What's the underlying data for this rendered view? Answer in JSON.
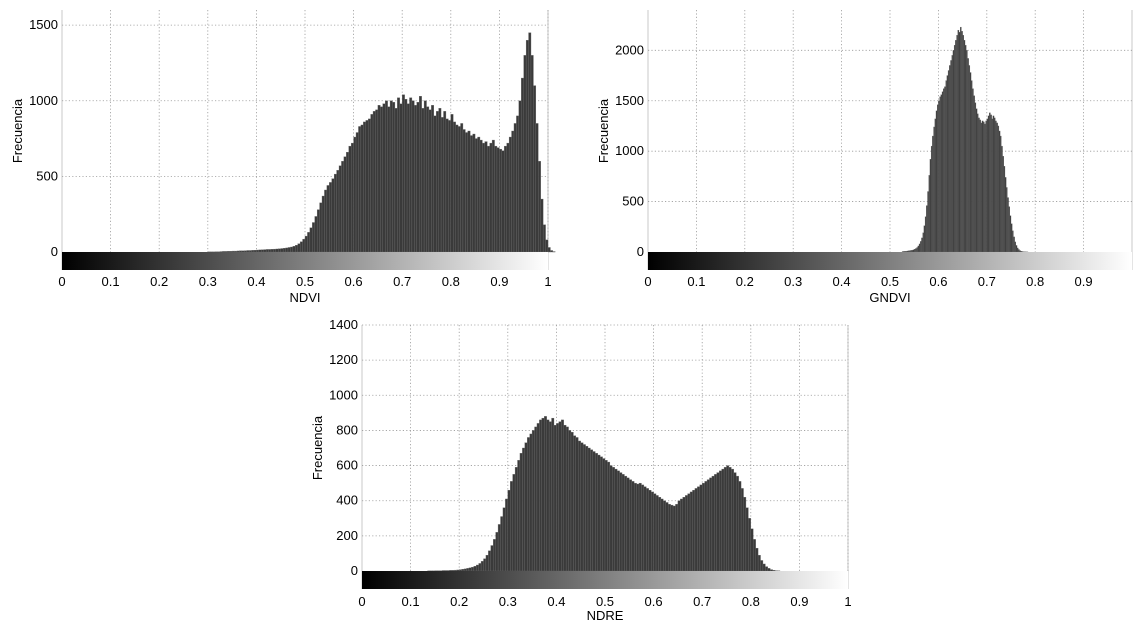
{
  "colors": {
    "bar": "#3a3a3a",
    "bar_edge": "#6a6a6a",
    "grid": "#9a9a9a",
    "colorbar_start": "#000000",
    "colorbar_end": "#ffffff"
  },
  "chart_data": [
    {
      "type": "bar",
      "xlabel": "NDVI",
      "ylabel": "Frecuencia",
      "xlim": [
        0,
        1
      ],
      "ylim": [
        0,
        1600
      ],
      "xticks": [
        "0",
        "0.1",
        "0.2",
        "0.3",
        "0.4",
        "0.5",
        "0.6",
        "0.7",
        "0.8",
        "0.9",
        "1"
      ],
      "yticks": [
        "0",
        "500",
        "1000",
        "1500"
      ],
      "grid": true,
      "colorbar": "grayscale black-to-white along x-axis",
      "bin_width": 0.005,
      "series": [
        {
          "x_range": [
            0.0,
            1.0
          ],
          "values": [
            0,
            0,
            0,
            0,
            0,
            0,
            0,
            0,
            0,
            0,
            0,
            0,
            0,
            0,
            0,
            0,
            0,
            0,
            0,
            0,
            0,
            0,
            0,
            0,
            0,
            0,
            0,
            0,
            0,
            0,
            0,
            0,
            0,
            0,
            0,
            0,
            0,
            0,
            0,
            0,
            0,
            0,
            0,
            0,
            0,
            0,
            0,
            0,
            0,
            0,
            0,
            0,
            0,
            0,
            0,
            0,
            0,
            0,
            0,
            0,
            1,
            1,
            1,
            2,
            2,
            3,
            4,
            4,
            5,
            5,
            6,
            6,
            7,
            8,
            8,
            9,
            10,
            10,
            11,
            12,
            13,
            14,
            15,
            16,
            17,
            17,
            18,
            19,
            20,
            21,
            23,
            25,
            27,
            30,
            33,
            38,
            45,
            55,
            68,
            85,
            105,
            130,
            160,
            195,
            235,
            280,
            325,
            370,
            410,
            440,
            460,
            485,
            515,
            540,
            570,
            600,
            630,
            660,
            700,
            720,
            760,
            790,
            830,
            840,
            860,
            870,
            880,
            910,
            930,
            940,
            970,
            960,
            980,
            1000,
            960,
            1000,
            990,
            950,
            1020,
            980,
            1040,
            1010,
            980,
            1020,
            1000,
            970,
            990,
            1030,
            950,
            1000,
            960,
            940,
            970,
            900,
            930,
            950,
            890,
            930,
            880,
            870,
            910,
            860,
            840,
            830,
            850,
            810,
            790,
            800,
            770,
            780,
            750,
            760,
            740,
            720,
            730,
            700,
            720,
            740,
            700,
            690,
            680,
            670,
            700,
            720,
            760,
            800,
            850,
            900,
            1000,
            1150,
            1300,
            1400,
            1450,
            1300,
            1100,
            850,
            600,
            350,
            180,
            80,
            30,
            10,
            3,
            0,
            0,
            0,
            0,
            0,
            0,
            0,
            0,
            0,
            0,
            0,
            0,
            0,
            0,
            0,
            0,
            0
          ]
        }
      ]
    },
    {
      "type": "bar",
      "xlabel": "GNDVI",
      "ylabel": "Frecuencia",
      "xlim": [
        0,
        1
      ],
      "ylim": [
        0,
        2400
      ],
      "xticks": [
        "0",
        "0.1",
        "0.2",
        "0.3",
        "0.4",
        "0.5",
        "0.6",
        "0.7",
        "0.8",
        "0.9"
      ],
      "yticks": [
        "0",
        "500",
        "1000",
        "1500",
        "2000"
      ],
      "grid": true,
      "colorbar": "grayscale black-to-white along x-axis",
      "bin_width": 0.0025,
      "series": [
        {
          "x_range": [
            0.525,
            0.875
          ],
          "values": [
            5,
            6,
            7,
            8,
            10,
            12,
            14,
            16,
            18,
            22,
            28,
            35,
            45,
            60,
            80,
            105,
            140,
            190,
            260,
            350,
            460,
            600,
            760,
            920,
            1050,
            1150,
            1240,
            1320,
            1400,
            1460,
            1500,
            1540,
            1560,
            1590,
            1620,
            1640,
            1700,
            1750,
            1800,
            1850,
            1900,
            1950,
            2000,
            2050,
            2100,
            2150,
            2200,
            2180,
            2230,
            2190,
            2150,
            2100,
            2050,
            2000,
            1920,
            1850,
            1780,
            1700,
            1620,
            1550,
            1480,
            1420,
            1370,
            1330,
            1310,
            1280,
            1300,
            1290,
            1270,
            1300,
            1320,
            1350,
            1380,
            1360,
            1320,
            1350,
            1330,
            1300,
            1280,
            1250,
            1200,
            1150,
            1050,
            950,
            850,
            740,
            640,
            540,
            450,
            360,
            280,
            210,
            150,
            100,
            65,
            40,
            25,
            14,
            8,
            5,
            3,
            2,
            1,
            1,
            0,
            0,
            0,
            0,
            0,
            0
          ]
        }
      ]
    },
    {
      "type": "bar",
      "xlabel": "NDRE",
      "ylabel": "Frecuencia",
      "xlim": [
        0,
        1
      ],
      "ylim": [
        0,
        1400
      ],
      "xticks": [
        "0",
        "0.1",
        "0.2",
        "0.3",
        "0.4",
        "0.5",
        "0.6",
        "0.7",
        "0.8",
        "0.9",
        "1"
      ],
      "yticks": [
        "0",
        "200",
        "400",
        "600",
        "800",
        "1000",
        "1200",
        "1400"
      ],
      "grid": true,
      "colorbar": "grayscale black-to-white along x-axis",
      "bin_width": 0.005,
      "series": [
        {
          "x_range": [
            0.0,
            1.0
          ],
          "values": [
            0,
            0,
            0,
            0,
            0,
            0,
            0,
            0,
            0,
            0,
            0,
            0,
            0,
            0,
            0,
            0,
            0,
            0,
            0,
            0,
            0,
            0,
            0,
            0,
            0,
            0,
            0,
            1,
            1,
            1,
            2,
            2,
            2,
            3,
            3,
            3,
            4,
            4,
            5,
            6,
            8,
            10,
            12,
            15,
            18,
            22,
            27,
            34,
            43,
            55,
            70,
            90,
            115,
            145,
            180,
            220,
            265,
            310,
            360,
            410,
            460,
            510,
            550,
            590,
            630,
            670,
            700,
            730,
            760,
            780,
            800,
            820,
            840,
            860,
            870,
            880,
            860,
            850,
            870,
            830,
            840,
            850,
            860,
            830,
            820,
            800,
            790,
            770,
            760,
            740,
            730,
            720,
            710,
            700,
            690,
            680,
            670,
            660,
            650,
            640,
            630,
            620,
            600,
            590,
            580,
            570,
            560,
            550,
            540,
            530,
            520,
            510,
            500,
            495,
            500,
            490,
            480,
            470,
            460,
            450,
            440,
            430,
            420,
            410,
            400,
            390,
            380,
            375,
            370,
            380,
            400,
            410,
            420,
            430,
            440,
            450,
            460,
            470,
            480,
            490,
            500,
            510,
            520,
            530,
            540,
            550,
            560,
            570,
            580,
            590,
            600,
            590,
            580,
            560,
            540,
            510,
            470,
            420,
            360,
            300,
            240,
            180,
            130,
            90,
            60,
            40,
            25,
            15,
            8,
            4,
            2,
            1,
            0,
            0,
            0,
            0,
            0,
            0,
            0,
            0,
            0,
            0,
            0,
            0,
            0,
            0,
            0,
            0,
            0,
            0,
            0,
            0,
            0,
            0,
            0,
            0,
            0,
            0,
            0,
            0
          ]
        }
      ]
    }
  ]
}
